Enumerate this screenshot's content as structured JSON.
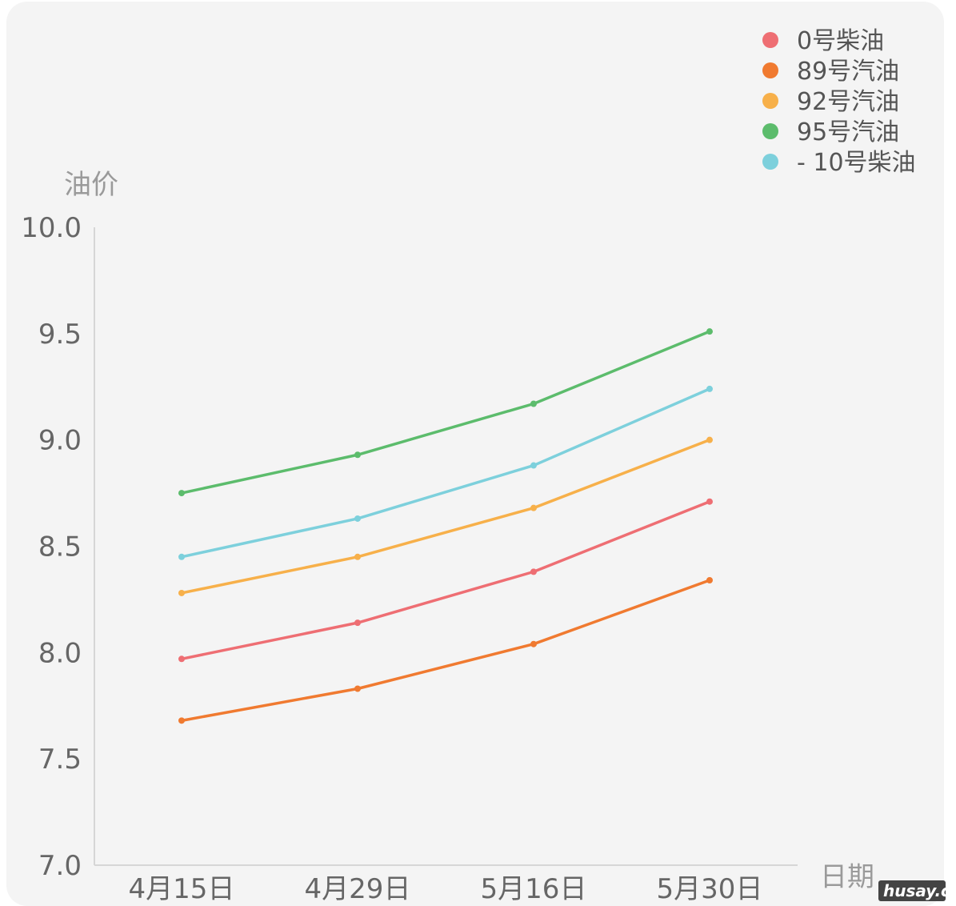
{
  "chart_data": {
    "type": "line",
    "x": [
      "4月15日",
      "4月29日",
      "5月16日",
      "5月30日"
    ],
    "xlabel": "日期",
    "ylabel": "油价",
    "ylim": [
      7.0,
      10.0
    ],
    "yticks": [
      "7.0",
      "7.5",
      "8.0",
      "8.5",
      "9.0",
      "9.5",
      "10.0"
    ],
    "grid": false,
    "legend_position": "top-right",
    "series": [
      {
        "name": "0号柴油",
        "color": "#ee6e73",
        "values": [
          7.97,
          8.14,
          8.38,
          8.71
        ]
      },
      {
        "name": "89号汽油",
        "color": "#f07a30",
        "values": [
          7.68,
          7.83,
          8.04,
          8.34
        ]
      },
      {
        "name": "92号汽油",
        "color": "#f7b04a",
        "values": [
          8.28,
          8.45,
          8.68,
          9.0
        ]
      },
      {
        "name": "95号汽油",
        "color": "#5cbc6c",
        "values": [
          8.75,
          8.93,
          9.17,
          9.51
        ]
      },
      {
        "name": " - 10号柴油",
        "color": "#7dd0dc",
        "values": [
          8.45,
          8.63,
          8.88,
          9.24
        ]
      }
    ]
  },
  "watermark": "husay.cn"
}
